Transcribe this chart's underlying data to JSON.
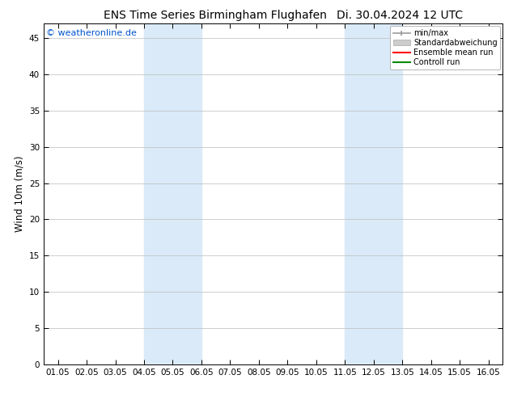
{
  "title_left": "ENS Time Series Birmingham Flughafen",
  "title_right": "Di. 30.04.2024 12 UTC",
  "ylabel": "Wind 10m (m/s)",
  "watermark": "© weatheronline.de",
  "watermark_color": "#0055cc",
  "background_color": "#ffffff",
  "plot_bg_color": "#ffffff",
  "shaded_bands": [
    {
      "x_start": 4.05,
      "x_end": 6.05,
      "color": "#daeaf8"
    },
    {
      "x_start": 11.05,
      "x_end": 13.05,
      "color": "#daeaf8"
    }
  ],
  "x_ticks": [
    1.05,
    2.05,
    3.05,
    4.05,
    5.05,
    6.05,
    7.05,
    8.05,
    9.05,
    10.05,
    11.05,
    12.05,
    13.05,
    14.05,
    15.05,
    16.05
  ],
  "x_tick_labels": [
    "01.05",
    "02.05",
    "03.05",
    "04.05",
    "05.05",
    "06.05",
    "07.05",
    "08.05",
    "09.05",
    "10.05",
    "11.05",
    "12.05",
    "13.05",
    "14.05",
    "15.05",
    "16.05"
  ],
  "x_min": 0.55,
  "x_max": 16.55,
  "y_min": 0,
  "y_max": 47,
  "y_ticks": [
    0,
    5,
    10,
    15,
    20,
    25,
    30,
    35,
    40,
    45
  ],
  "legend_entries": [
    {
      "label": "min/max",
      "color": "#999999",
      "style": "minmax"
    },
    {
      "label": "Standardabweichung",
      "color": "#cccccc",
      "style": "std"
    },
    {
      "label": "Ensemble mean run",
      "color": "#ff0000",
      "style": "line"
    },
    {
      "label": "Controll run",
      "color": "#008800",
      "style": "line"
    }
  ],
  "title_fontsize": 10,
  "tick_fontsize": 7.5,
  "ylabel_fontsize": 8.5,
  "legend_fontsize": 7,
  "watermark_fontsize": 8,
  "grid_color": "#bbbbbb",
  "tick_color": "#000000",
  "spine_color": "#000000"
}
